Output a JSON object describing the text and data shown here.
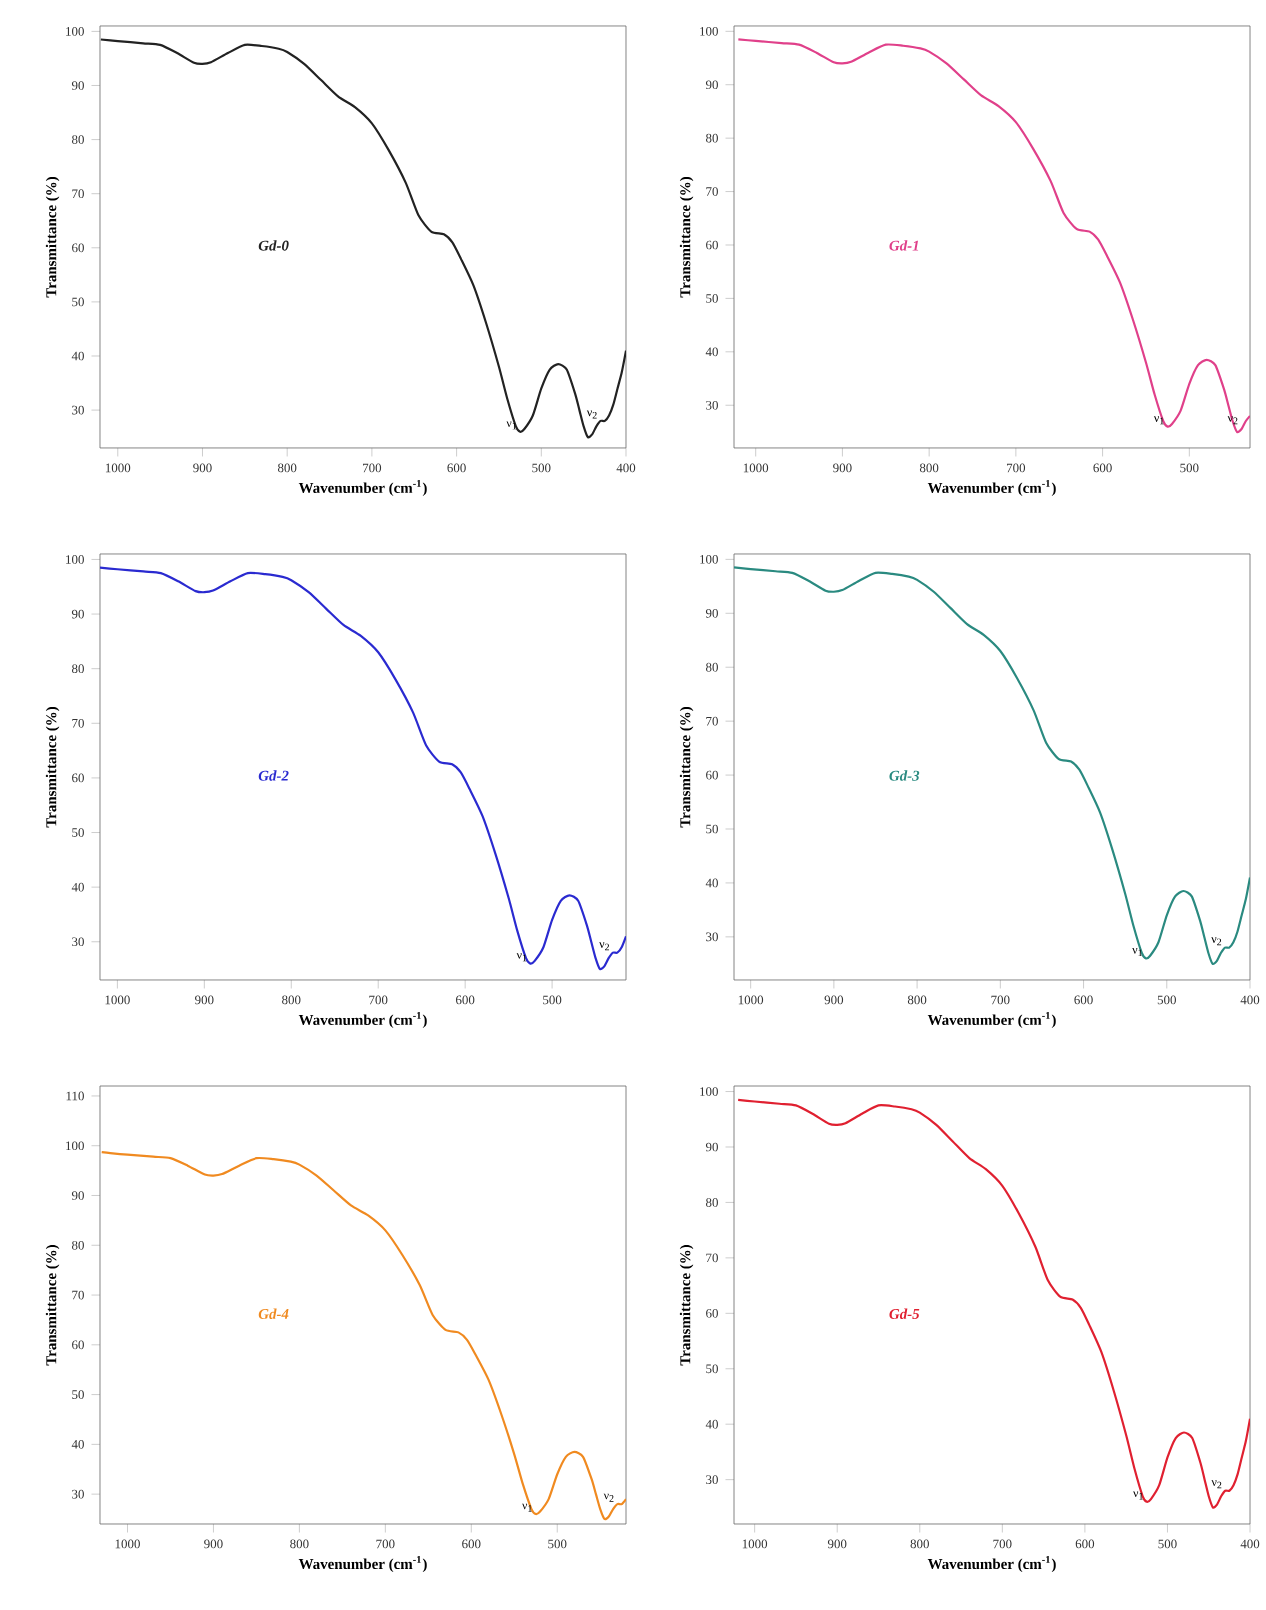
{
  "chart_data": [
    {
      "type": "line",
      "title": "Gd-0",
      "xlabel": "Wavenumber (cm$^{-1}$)",
      "ylabel": "Transmittance (%)",
      "xlim": [
        1021,
        400
      ],
      "ylim": [
        23,
        101
      ],
      "xticks": [
        1000,
        900,
        800,
        700,
        600,
        500,
        400
      ],
      "yticks": [
        30,
        40,
        50,
        60,
        70,
        80,
        90,
        100
      ],
      "annotations": [
        {
          "text": "ν$_{1}$",
          "x": 525,
          "y": 26
        },
        {
          "text": "ν$_{2}$",
          "x": 430,
          "y": 28
        }
      ],
      "series": [
        {
          "color": "#222222",
          "x": [
            1020,
            1000,
            970,
            950,
            930,
            910,
            900,
            890,
            870,
            850,
            830,
            810,
            800,
            780,
            760,
            740,
            720,
            700,
            680,
            660,
            645,
            630,
            615,
            605,
            595,
            580,
            565,
            550,
            540,
            530,
            525,
            520,
            510,
            500,
            490,
            480,
            470,
            460,
            455,
            450,
            445,
            440,
            435,
            430,
            425,
            420,
            415,
            410,
            405,
            400
          ],
          "values": [
            98.5,
            98.2,
            97.8,
            97.5,
            96,
            94.2,
            94,
            94.3,
            96,
            97.5,
            97.3,
            96.8,
            96.2,
            94,
            91,
            88,
            86,
            83,
            78,
            72,
            66,
            63,
            62.5,
            61,
            58,
            53,
            46,
            38,
            32,
            27,
            26,
            26.5,
            29,
            34,
            37.5,
            38.5,
            37.5,
            33,
            30,
            27,
            25,
            25.5,
            27,
            28,
            28,
            29,
            31,
            34,
            37,
            41
          ]
        }
      ]
    },
    {
      "type": "line",
      "title": "Gd-1",
      "xlabel": "Wavenumber (cm$^{-1}$)",
      "ylabel": "Transmittance (%)",
      "xlim": [
        1025,
        430
      ],
      "ylim": [
        22,
        101
      ],
      "xticks": [
        1000,
        900,
        800,
        700,
        600,
        500
      ],
      "yticks": [
        30,
        40,
        50,
        60,
        70,
        80,
        90,
        100
      ],
      "annotations": [
        {
          "text": "ν$_{1}$",
          "x": 525,
          "y": 26
        },
        {
          "text": "ν$_{2}$",
          "x": 440,
          "y": 26
        }
      ],
      "series": [
        {
          "color": "#e0408a",
          "x": [
            1020,
            1000,
            970,
            950,
            930,
            910,
            900,
            890,
            870,
            850,
            830,
            810,
            800,
            780,
            760,
            740,
            720,
            700,
            680,
            660,
            645,
            630,
            615,
            605,
            595,
            580,
            565,
            550,
            540,
            530,
            525,
            520,
            510,
            500,
            490,
            480,
            470,
            460,
            455,
            450,
            445,
            440,
            435,
            430
          ],
          "values": [
            98.5,
            98.2,
            97.8,
            97.5,
            96,
            94.2,
            94,
            94.3,
            96,
            97.5,
            97.3,
            96.8,
            96.2,
            94,
            91,
            88,
            86,
            83,
            78,
            72,
            66,
            63,
            62.5,
            61,
            58,
            53,
            46,
            38,
            32,
            27,
            26,
            26.5,
            29,
            34,
            37.5,
            38.5,
            37.5,
            33,
            30,
            27,
            25,
            25.5,
            27,
            28
          ]
        }
      ]
    },
    {
      "type": "line",
      "title": "Gd-2",
      "xlabel": "Wavenumber (cm$^{-1}$)",
      "ylabel": "Transmittance (%)",
      "xlim": [
        1020,
        415
      ],
      "ylim": [
        23,
        101
      ],
      "xticks": [
        1000,
        900,
        800,
        700,
        600,
        500
      ],
      "yticks": [
        30,
        40,
        50,
        60,
        70,
        80,
        90,
        100
      ],
      "annotations": [
        {
          "text": "ν$_{1}$",
          "x": 525,
          "y": 26
        },
        {
          "text": "ν$_{2}$",
          "x": 430,
          "y": 28
        }
      ],
      "series": [
        {
          "color": "#2a2ad0",
          "x": [
            1020,
            1000,
            970,
            950,
            930,
            910,
            900,
            890,
            870,
            850,
            830,
            810,
            800,
            780,
            760,
            740,
            720,
            700,
            680,
            660,
            645,
            630,
            615,
            605,
            595,
            580,
            565,
            550,
            540,
            530,
            525,
            520,
            510,
            500,
            490,
            480,
            470,
            460,
            455,
            450,
            445,
            440,
            435,
            430,
            425,
            420,
            415
          ],
          "values": [
            98.5,
            98.2,
            97.8,
            97.5,
            96,
            94.2,
            94,
            94.3,
            96,
            97.5,
            97.3,
            96.8,
            96.2,
            94,
            91,
            88,
            86,
            83,
            78,
            72,
            66,
            63,
            62.5,
            61,
            58,
            53,
            46,
            38,
            32,
            27,
            26,
            26.5,
            29,
            34,
            37.5,
            38.5,
            37.5,
            33,
            30,
            27,
            25,
            25.5,
            27,
            28,
            28,
            29,
            31
          ]
        }
      ]
    },
    {
      "type": "line",
      "title": "Gd-3",
      "xlabel": "Wavenumber (cm$^{-1}$)",
      "ylabel": "Transmittance (%)",
      "xlim": [
        1020,
        400
      ],
      "ylim": [
        22,
        101
      ],
      "xticks": [
        1000,
        900,
        800,
        700,
        600,
        500,
        400
      ],
      "yticks": [
        30,
        40,
        50,
        60,
        70,
        80,
        90,
        100
      ],
      "annotations": [
        {
          "text": "ν$_{1}$",
          "x": 525,
          "y": 26
        },
        {
          "text": "ν$_{2}$",
          "x": 430,
          "y": 28
        }
      ],
      "series": [
        {
          "color": "#2a8a80",
          "x": [
            1020,
            1000,
            970,
            950,
            930,
            910,
            900,
            890,
            870,
            850,
            830,
            810,
            800,
            780,
            760,
            740,
            720,
            700,
            680,
            660,
            645,
            630,
            615,
            605,
            595,
            580,
            565,
            550,
            540,
            530,
            525,
            520,
            510,
            500,
            490,
            480,
            470,
            460,
            455,
            450,
            445,
            440,
            435,
            430,
            425,
            420,
            415,
            410,
            405,
            400
          ],
          "values": [
            98.5,
            98.2,
            97.8,
            97.5,
            96,
            94.2,
            94,
            94.3,
            96,
            97.5,
            97.3,
            96.8,
            96.2,
            94,
            91,
            88,
            86,
            83,
            78,
            72,
            66,
            63,
            62.5,
            61,
            58,
            53,
            46,
            38,
            32,
            27,
            26,
            26.5,
            29,
            34,
            37.5,
            38.5,
            37.5,
            33,
            30,
            27,
            25,
            25.5,
            27,
            28,
            28,
            29,
            31,
            34,
            37,
            41
          ]
        }
      ]
    },
    {
      "type": "line",
      "title": "Gd-4",
      "xlabel": "Wavenumber (cm$^{-1}$)",
      "ylabel": "Transmittance (%)",
      "xlim": [
        1032,
        420
      ],
      "ylim": [
        24,
        112
      ],
      "xticks": [
        1000,
        900,
        800,
        700,
        600,
        500
      ],
      "yticks": [
        30,
        40,
        50,
        60,
        70,
        80,
        90,
        100,
        110
      ],
      "annotations": [
        {
          "text": "ν$_{1}$",
          "x": 525,
          "y": 26
        },
        {
          "text": "ν$_{2}$",
          "x": 430,
          "y": 28
        }
      ],
      "series": [
        {
          "color": "#f08a20",
          "x": [
            1030,
            1020,
            1000,
            970,
            950,
            930,
            910,
            900,
            890,
            870,
            850,
            830,
            810,
            800,
            780,
            760,
            740,
            720,
            700,
            680,
            660,
            645,
            630,
            615,
            605,
            595,
            580,
            565,
            550,
            540,
            530,
            525,
            520,
            510,
            500,
            490,
            480,
            470,
            460,
            455,
            450,
            445,
            440,
            435,
            430,
            425,
            420
          ],
          "values": [
            98.7,
            98.5,
            98.2,
            97.8,
            97.5,
            96,
            94.2,
            94,
            94.3,
            96,
            97.5,
            97.3,
            96.8,
            96.2,
            94,
            91,
            88,
            86,
            83,
            78,
            72,
            66,
            63,
            62.5,
            61,
            58,
            53,
            46,
            38,
            32,
            27,
            26,
            26.5,
            29,
            34,
            37.5,
            38.5,
            37.5,
            33,
            30,
            27,
            25,
            25.5,
            27,
            28,
            28,
            29
          ]
        }
      ]
    },
    {
      "type": "line",
      "title": "Gd-5",
      "xlabel": "Wavenumber (cm$^{-1}$)",
      "ylabel": "Transmittance (%)",
      "xlim": [
        1025,
        400
      ],
      "ylim": [
        22,
        101
      ],
      "xticks": [
        1000,
        900,
        800,
        700,
        600,
        500,
        400
      ],
      "yticks": [
        30,
        40,
        50,
        60,
        70,
        80,
        90,
        100
      ],
      "annotations": [
        {
          "text": "ν$_{1}$",
          "x": 525,
          "y": 26
        },
        {
          "text": "ν$_{2}$",
          "x": 430,
          "y": 28
        }
      ],
      "series": [
        {
          "color": "#e02030",
          "x": [
            1020,
            1000,
            970,
            950,
            930,
            910,
            900,
            890,
            870,
            850,
            830,
            810,
            800,
            780,
            760,
            740,
            720,
            700,
            680,
            660,
            645,
            630,
            615,
            605,
            595,
            580,
            565,
            550,
            540,
            530,
            525,
            520,
            510,
            500,
            490,
            480,
            470,
            460,
            455,
            450,
            445,
            440,
            435,
            430,
            425,
            420,
            415,
            410,
            405,
            400
          ],
          "values": [
            98.5,
            98.2,
            97.8,
            97.5,
            96,
            94.2,
            94,
            94.3,
            96,
            97.5,
            97.3,
            96.8,
            96.2,
            94,
            91,
            88,
            86,
            83,
            78,
            72,
            66,
            63,
            62.5,
            61,
            58,
            53,
            46,
            38,
            32,
            27,
            26,
            26.5,
            29,
            34,
            37.5,
            38.5,
            37.5,
            33,
            30,
            27,
            25,
            25.5,
            27,
            28,
            28,
            29,
            31,
            34,
            37,
            41
          ]
        }
      ]
    }
  ]
}
